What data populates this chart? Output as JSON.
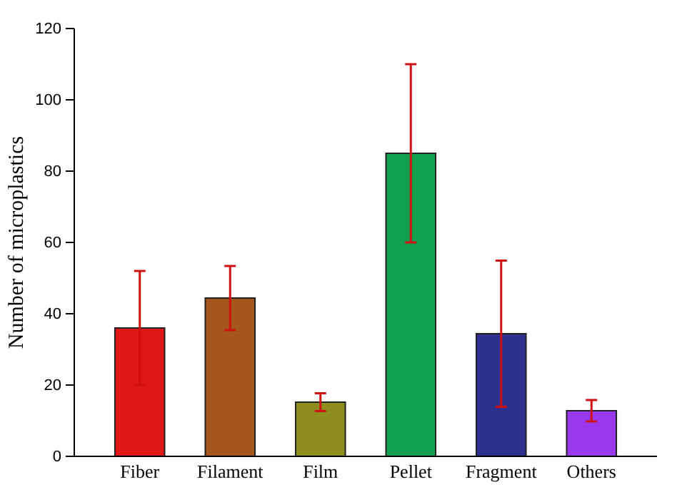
{
  "chart_data": {
    "type": "bar",
    "ylabel": "Number of microplastics",
    "categories": [
      "Fiber",
      "Filament",
      "Film",
      "Pellet",
      "Fragment",
      "Others"
    ],
    "values": [
      36,
      44.4,
      15.2,
      85,
      34.4,
      12.8
    ],
    "errors": [
      16,
      9,
      2.5,
      25,
      20.5,
      3
    ],
    "colors": [
      "#e01818",
      "#a4561c",
      "#8e8e1e",
      "#12a050",
      "#2e3090",
      "#9a38ee"
    ],
    "ylim": [
      0,
      120
    ],
    "yticks": [
      0,
      20,
      40,
      60,
      80,
      100,
      120
    ],
    "grid": false
  }
}
